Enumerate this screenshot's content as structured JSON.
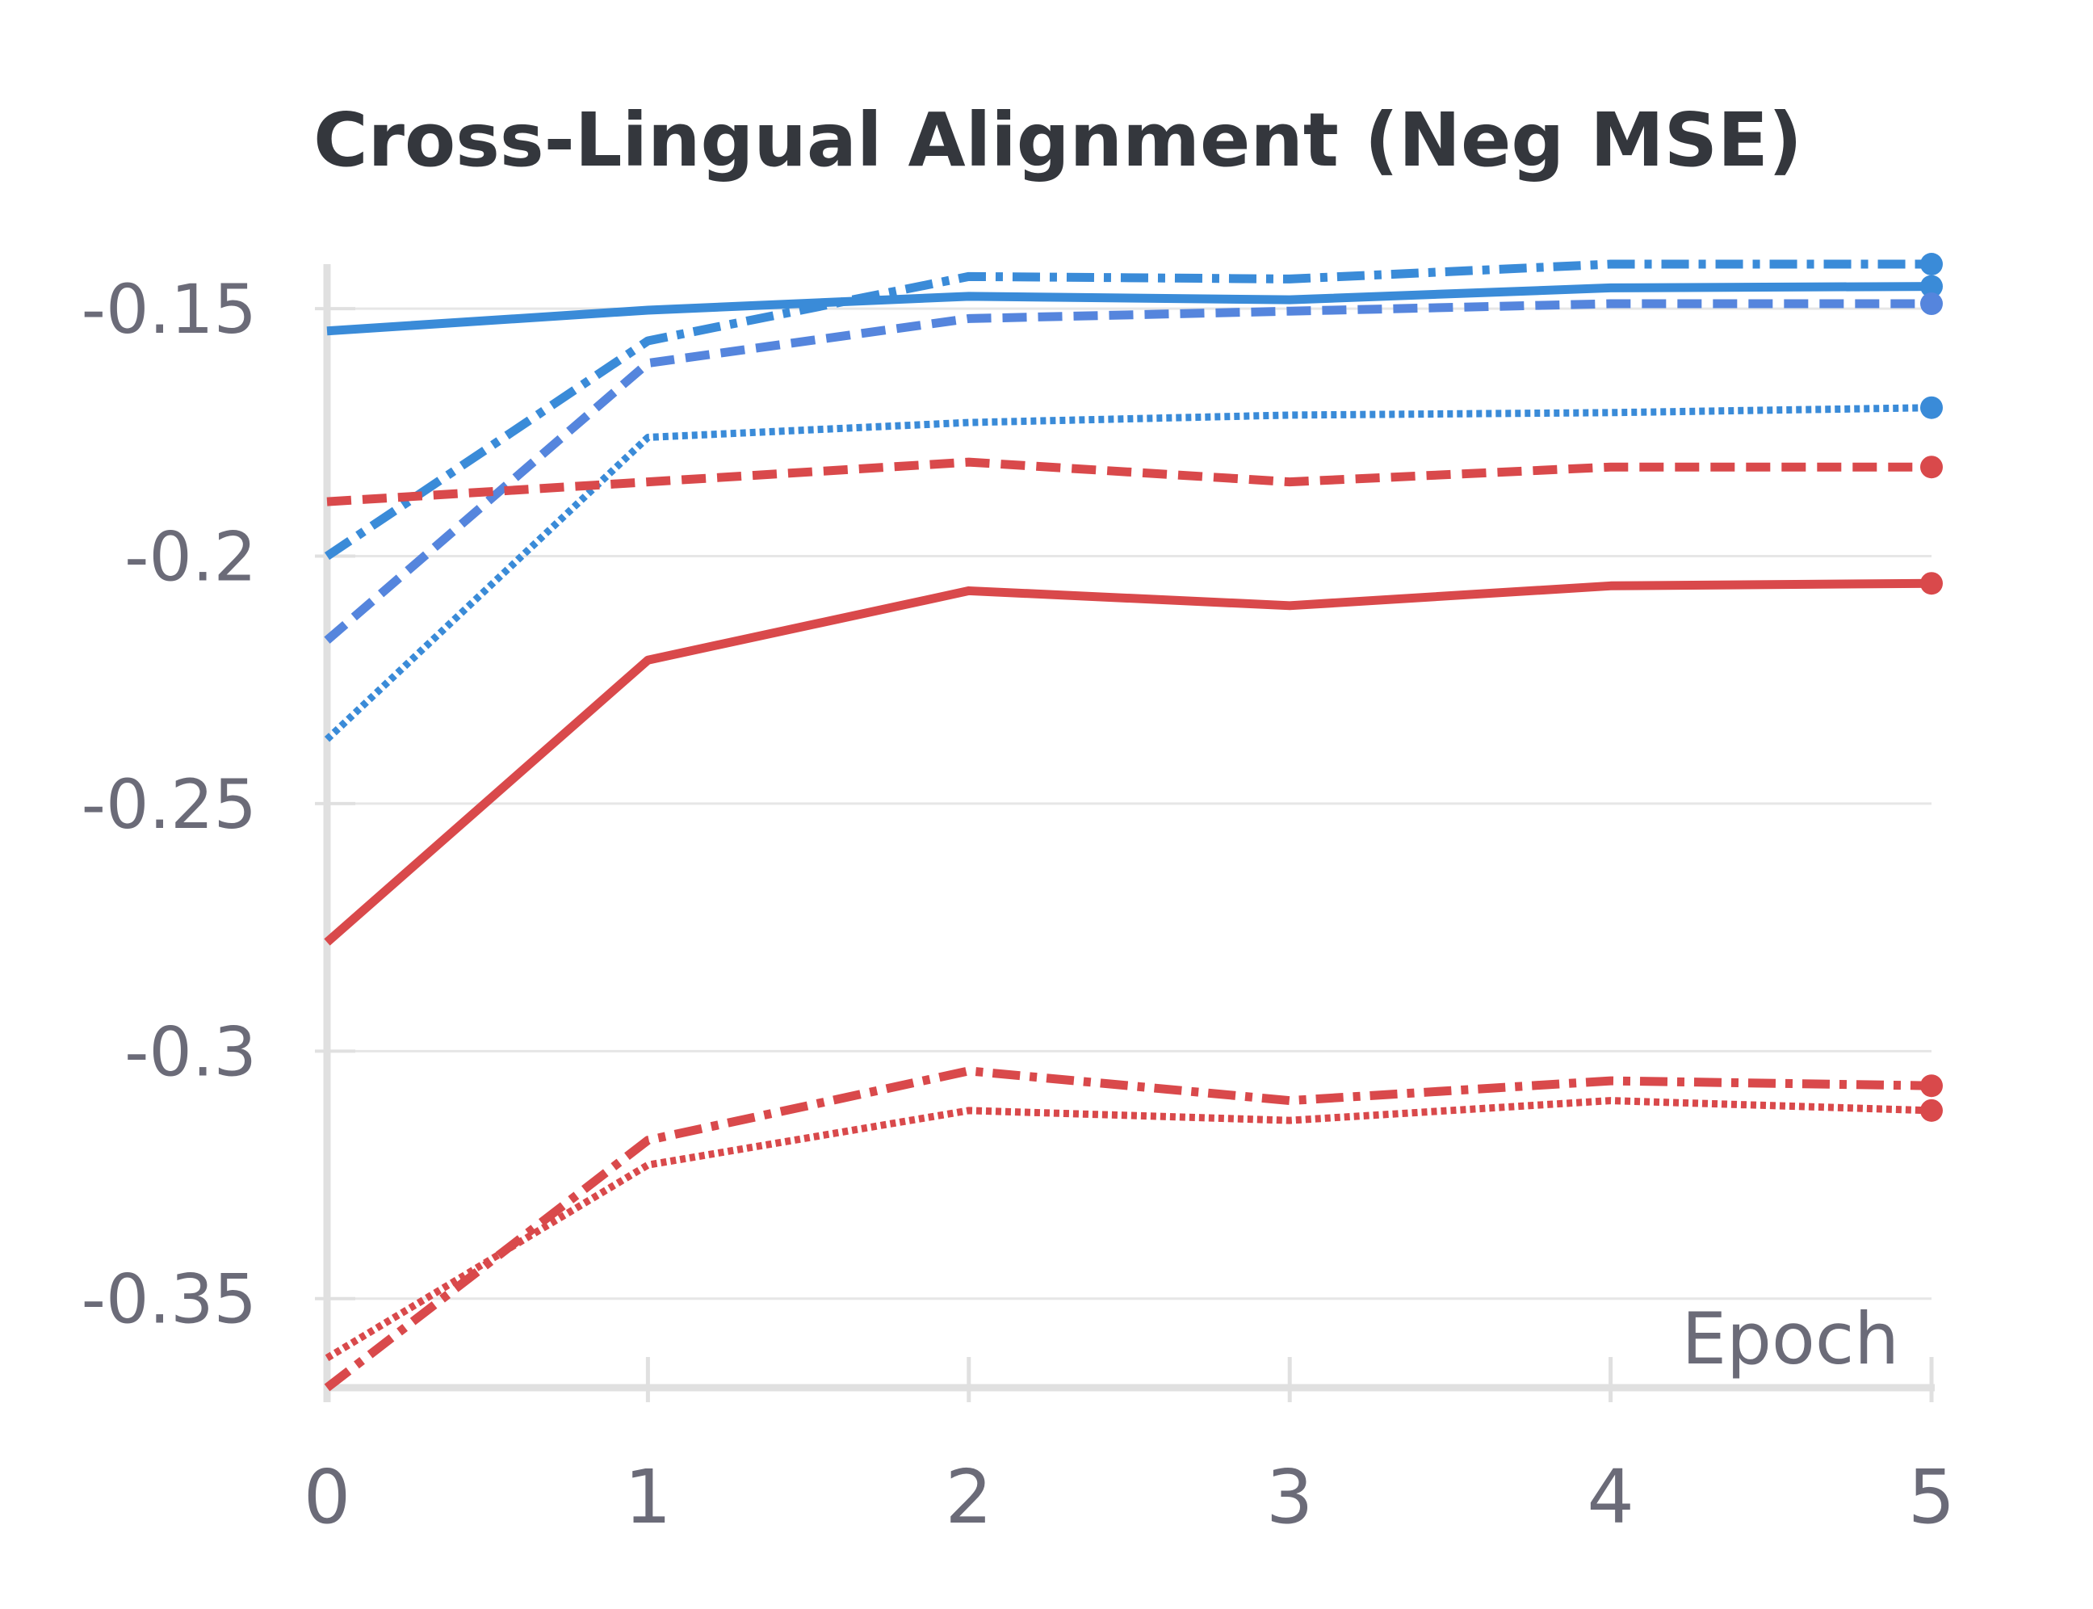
{
  "chart_data": {
    "type": "line",
    "title": "Cross-Lingual Alignment (Neg MSE)",
    "xlabel": "Epoch",
    "ylabel": "",
    "x": [
      0,
      1,
      2,
      3,
      4,
      5
    ],
    "xlim": [
      0,
      5
    ],
    "ylim": [
      -0.368,
      -0.141
    ],
    "x_ticks": [
      "0",
      "1",
      "2",
      "3",
      "4",
      "5"
    ],
    "y_ticks": [
      {
        "value": -0.15,
        "label": "-0.15"
      },
      {
        "value": -0.2,
        "label": "-0.2"
      },
      {
        "value": -0.25,
        "label": "-0.25"
      },
      {
        "value": -0.3,
        "label": "-0.3"
      },
      {
        "value": -0.35,
        "label": "-0.35"
      }
    ],
    "grid": true,
    "legend": "none",
    "series": [
      {
        "color": "#3a8bd8",
        "dash": "solid",
        "values": [
          -0.1545,
          -0.1503,
          -0.1475,
          -0.1482,
          -0.1458,
          -0.1455
        ]
      },
      {
        "color": "#3a8bd8",
        "dash": "dashdot",
        "values": [
          -0.2,
          -0.1565,
          -0.1435,
          -0.144,
          -0.141,
          -0.141
        ]
      },
      {
        "color": "#5585dd",
        "dash": "dashed",
        "values": [
          -0.217,
          -0.161,
          -0.152,
          -0.1505,
          -0.149,
          -0.149
        ]
      },
      {
        "color": "#3a8bd8",
        "dash": "dotted",
        "values": [
          -0.237,
          -0.176,
          -0.173,
          -0.1715,
          -0.171,
          -0.17
        ]
      },
      {
        "color": "#d9494b",
        "dash": "dashed",
        "values": [
          -0.189,
          -0.185,
          -0.181,
          -0.185,
          -0.182,
          -0.182
        ]
      },
      {
        "color": "#d9494b",
        "dash": "solid",
        "values": [
          -0.278,
          -0.221,
          -0.207,
          -0.21,
          -0.206,
          -0.2055
        ]
      },
      {
        "color": "#d9494b",
        "dash": "dashdot",
        "values": [
          -0.368,
          -0.318,
          -0.304,
          -0.31,
          -0.306,
          -0.307
        ]
      },
      {
        "color": "#d9494b",
        "dash": "dotted",
        "values": [
          -0.362,
          -0.323,
          -0.312,
          -0.314,
          -0.31,
          -0.312
        ]
      }
    ]
  }
}
